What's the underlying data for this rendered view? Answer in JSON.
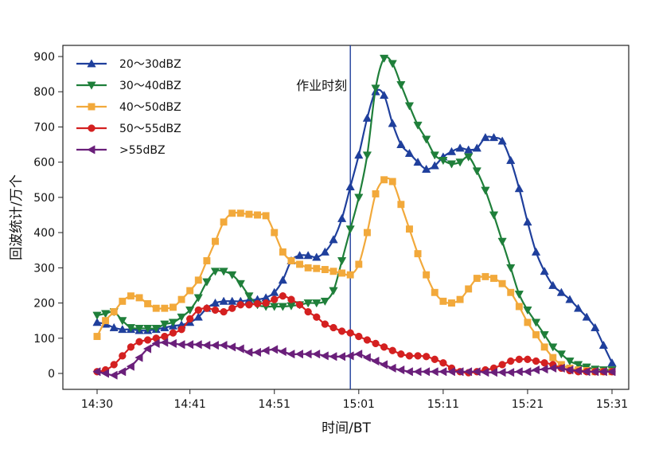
{
  "chart_data": {
    "type": "line",
    "xlabel": "时间/BT",
    "ylabel": "回波统计/万个",
    "xlim_minutes": [
      -4,
      64
    ],
    "ylim": [
      -50,
      930
    ],
    "x_ticks": [
      {
        "label": "14:30",
        "value": 0
      },
      {
        "label": "14:41",
        "value": 11
      },
      {
        "label": "14:51",
        "value": 21
      },
      {
        "label": "15:01",
        "value": 31
      },
      {
        "label": "15:11",
        "value": 41
      },
      {
        "label": "15:21",
        "value": 51
      },
      {
        "label": "15:31",
        "value": 61
      }
    ],
    "y_ticks": [
      0,
      100,
      200,
      300,
      400,
      500,
      600,
      700,
      800,
      900
    ],
    "grid": false,
    "legend_position": "top-left",
    "x_unit_note": "x values are minutes after 14:30",
    "annotations": [
      {
        "text": "作业时刻",
        "x": 30
      }
    ],
    "series": [
      {
        "name": "20～30dBZ",
        "color": "#1f3f9c",
        "marker": "triangle-up",
        "x": [
          0,
          1,
          2,
          3,
          4,
          5,
          6,
          7,
          8,
          9,
          10,
          11,
          12,
          13,
          14,
          15,
          16,
          17,
          18,
          19,
          20,
          21,
          22,
          23,
          24,
          25,
          26,
          27,
          28,
          29,
          30,
          31,
          32,
          33,
          34,
          35,
          36,
          37,
          38,
          39,
          40,
          41,
          42,
          43,
          44,
          45,
          46,
          47,
          48,
          49,
          50,
          51,
          52,
          53,
          54,
          55,
          56,
          57,
          58,
          59,
          60,
          61
        ],
        "y": [
          145,
          140,
          130,
          125,
          125,
          122,
          122,
          125,
          130,
          135,
          138,
          145,
          160,
          185,
          200,
          205,
          205,
          205,
          208,
          210,
          215,
          230,
          265,
          320,
          335,
          335,
          330,
          345,
          380,
          440,
          530,
          620,
          725,
          800,
          790,
          710,
          650,
          625,
          600,
          580,
          590,
          615,
          630,
          640,
          635,
          640,
          670,
          670,
          660,
          605,
          525,
          430,
          345,
          290,
          250,
          230,
          210,
          185,
          160,
          130,
          80,
          30
        ]
      },
      {
        "name": "30～40dBZ",
        "color": "#1f7f3a",
        "marker": "triangle-down",
        "x": [
          0,
          1,
          2,
          3,
          4,
          5,
          6,
          7,
          8,
          9,
          10,
          11,
          12,
          13,
          14,
          15,
          16,
          17,
          18,
          19,
          20,
          21,
          22,
          23,
          24,
          25,
          26,
          27,
          28,
          29,
          30,
          31,
          32,
          33,
          34,
          35,
          36,
          37,
          38,
          39,
          40,
          41,
          42,
          43,
          44,
          45,
          46,
          47,
          48,
          49,
          50,
          51,
          52,
          53,
          54,
          55,
          56,
          57,
          58,
          59,
          60,
          61
        ],
        "y": [
          165,
          170,
          175,
          150,
          130,
          128,
          128,
          128,
          140,
          145,
          160,
          180,
          215,
          260,
          290,
          290,
          280,
          255,
          220,
          195,
          190,
          190,
          190,
          192,
          195,
          200,
          200,
          205,
          235,
          320,
          410,
          500,
          620,
          810,
          895,
          880,
          820,
          760,
          705,
          665,
          620,
          605,
          595,
          600,
          615,
          575,
          520,
          450,
          375,
          300,
          225,
          180,
          145,
          110,
          75,
          55,
          35,
          25,
          18,
          12,
          10,
          10
        ]
      },
      {
        "name": "40～50dBZ",
        "color": "#f2a93b",
        "marker": "square",
        "x": [
          0,
          1,
          2,
          3,
          4,
          5,
          6,
          7,
          8,
          9,
          10,
          11,
          12,
          13,
          14,
          15,
          16,
          17,
          18,
          19,
          20,
          21,
          22,
          23,
          24,
          25,
          26,
          27,
          28,
          29,
          30,
          31,
          32,
          33,
          34,
          35,
          36,
          37,
          38,
          39,
          40,
          41,
          42,
          43,
          44,
          45,
          46,
          47,
          48,
          49,
          50,
          51,
          52,
          53,
          54,
          55,
          56,
          57,
          58,
          59,
          60,
          61
        ],
        "y": [
          105,
          150,
          175,
          205,
          220,
          215,
          198,
          185,
          185,
          188,
          210,
          235,
          265,
          320,
          375,
          430,
          455,
          455,
          452,
          450,
          448,
          400,
          345,
          320,
          310,
          300,
          298,
          295,
          290,
          285,
          280,
          310,
          400,
          510,
          550,
          545,
          480,
          410,
          340,
          280,
          230,
          205,
          200,
          210,
          240,
          270,
          275,
          270,
          255,
          230,
          190,
          145,
          110,
          75,
          45,
          25,
          15,
          10,
          8,
          5,
          5,
          5
        ]
      },
      {
        "name": "50～55dBZ",
        "color": "#d42020",
        "marker": "circle",
        "x": [
          0,
          1,
          2,
          3,
          4,
          5,
          6,
          7,
          8,
          9,
          10,
          11,
          12,
          13,
          14,
          15,
          16,
          17,
          18,
          19,
          20,
          21,
          22,
          23,
          24,
          25,
          26,
          27,
          28,
          29,
          30,
          31,
          32,
          33,
          34,
          35,
          36,
          37,
          38,
          39,
          40,
          41,
          42,
          43,
          44,
          45,
          46,
          47,
          48,
          49,
          50,
          51,
          52,
          53,
          54,
          55,
          56,
          57,
          58,
          59,
          60,
          61
        ],
        "y": [
          5,
          10,
          25,
          50,
          75,
          90,
          95,
          100,
          105,
          115,
          125,
          155,
          180,
          185,
          180,
          175,
          185,
          195,
          195,
          198,
          200,
          210,
          220,
          210,
          195,
          175,
          160,
          140,
          130,
          120,
          115,
          105,
          95,
          85,
          75,
          65,
          55,
          50,
          50,
          48,
          40,
          30,
          15,
          5,
          2,
          5,
          10,
          15,
          25,
          35,
          40,
          40,
          35,
          30,
          25,
          15,
          8,
          5,
          5,
          5,
          5,
          5
        ]
      },
      {
        "name": ">55dBZ",
        "color": "#6a1f7a",
        "marker": "triangle-left",
        "x": [
          0,
          1,
          2,
          3,
          4,
          5,
          6,
          7,
          8,
          9,
          10,
          11,
          12,
          13,
          14,
          15,
          16,
          17,
          18,
          19,
          20,
          21,
          22,
          23,
          24,
          25,
          26,
          27,
          28,
          29,
          30,
          31,
          32,
          33,
          34,
          35,
          36,
          37,
          38,
          39,
          40,
          41,
          42,
          43,
          44,
          45,
          46,
          47,
          48,
          49,
          50,
          51,
          52,
          53,
          54,
          55,
          56,
          57,
          58,
          59,
          60,
          61
        ],
        "y": [
          5,
          0,
          -5,
          5,
          20,
          45,
          70,
          85,
          88,
          85,
          82,
          82,
          82,
          80,
          80,
          80,
          75,
          70,
          60,
          60,
          65,
          68,
          62,
          55,
          55,
          55,
          55,
          50,
          48,
          48,
          50,
          55,
          45,
          35,
          25,
          15,
          10,
          5,
          5,
          5,
          5,
          5,
          5,
          5,
          5,
          5,
          3,
          3,
          3,
          3,
          5,
          5,
          10,
          12,
          15,
          15,
          10,
          8,
          5,
          5,
          5,
          5
        ]
      }
    ]
  }
}
